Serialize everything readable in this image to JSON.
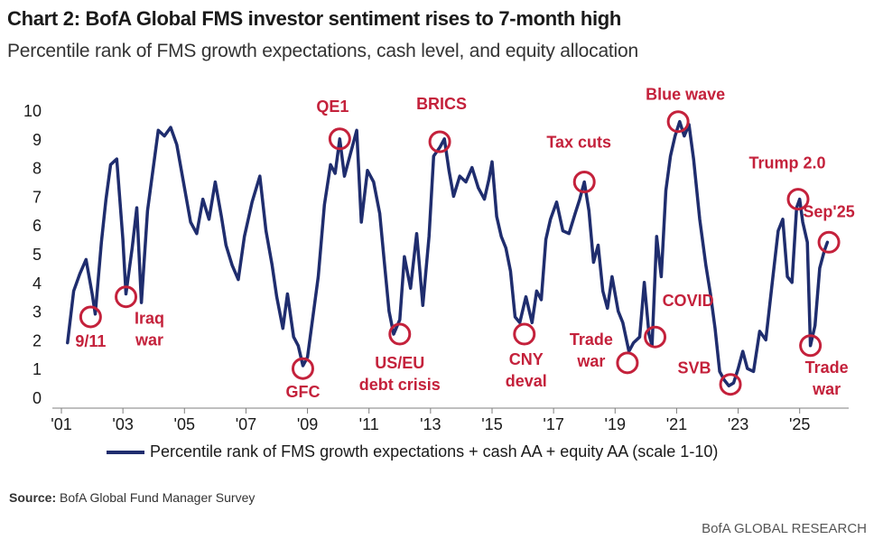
{
  "header": {
    "title": "Chart 2: BofA Global FMS investor sentiment rises to 7-month high",
    "subtitle": "Percentile rank of FMS growth expectations, cash level, and equity allocation"
  },
  "footer": {
    "source_label": "Source:",
    "source_text": "BofA Global Fund Manager Survey",
    "brand": "BofA GLOBAL RESEARCH"
  },
  "colors": {
    "line": "#1f2d6e",
    "annotation": "#c4213b",
    "text": "#1a1a1a"
  },
  "chart_data": {
    "type": "line",
    "title": "Chart 2: BofA Global FMS investor sentiment rises to 7-month high",
    "subtitle": "Percentile rank of FMS growth expectations, cash level, and equity allocation",
    "xlabel": "",
    "ylabel": "",
    "xlim": [
      2001,
      2026.3
    ],
    "ylim": [
      0,
      10
    ],
    "y_ticks": [
      0,
      1,
      2,
      3,
      4,
      5,
      6,
      7,
      8,
      9,
      10
    ],
    "x_ticks": [
      {
        "value": 2001,
        "label": "'01"
      },
      {
        "value": 2003,
        "label": "'03"
      },
      {
        "value": 2005,
        "label": "'05"
      },
      {
        "value": 2007,
        "label": "'07"
      },
      {
        "value": 2009,
        "label": "'09"
      },
      {
        "value": 2011,
        "label": "'11"
      },
      {
        "value": 2013,
        "label": "'13"
      },
      {
        "value": 2015,
        "label": "'15"
      },
      {
        "value": 2017,
        "label": "'17"
      },
      {
        "value": 2019,
        "label": "'19"
      },
      {
        "value": 2021,
        "label": "'21"
      },
      {
        "value": 2023,
        "label": "'23"
      },
      {
        "value": 2025,
        "label": "'25"
      }
    ],
    "grid": false,
    "legend": "bottom",
    "series": [
      {
        "name": "Percentile rank of FMS growth expectations + cash AA + equity AA (scale 1-10)",
        "points": [
          [
            2001.2,
            1.9
          ],
          [
            2001.4,
            3.7
          ],
          [
            2001.6,
            4.3
          ],
          [
            2001.8,
            4.8
          ],
          [
            2002.0,
            3.6
          ],
          [
            2002.1,
            2.9
          ],
          [
            2002.3,
            5.4
          ],
          [
            2002.45,
            6.9
          ],
          [
            2002.6,
            8.1
          ],
          [
            2002.8,
            8.3
          ],
          [
            2003.0,
            5.5
          ],
          [
            2003.1,
            3.6
          ],
          [
            2003.3,
            5.2
          ],
          [
            2003.45,
            6.6
          ],
          [
            2003.6,
            3.3
          ],
          [
            2003.8,
            6.5
          ],
          [
            2004.0,
            8.1
          ],
          [
            2004.15,
            9.3
          ],
          [
            2004.35,
            9.1
          ],
          [
            2004.55,
            9.4
          ],
          [
            2004.75,
            8.8
          ],
          [
            2004.95,
            7.6
          ],
          [
            2005.2,
            6.1
          ],
          [
            2005.4,
            5.7
          ],
          [
            2005.6,
            6.9
          ],
          [
            2005.8,
            6.2
          ],
          [
            2006.0,
            7.5
          ],
          [
            2006.2,
            6.3
          ],
          [
            2006.35,
            5.3
          ],
          [
            2006.55,
            4.6
          ],
          [
            2006.75,
            4.1
          ],
          [
            2006.95,
            5.6
          ],
          [
            2007.2,
            6.8
          ],
          [
            2007.45,
            7.7
          ],
          [
            2007.65,
            5.8
          ],
          [
            2007.85,
            4.6
          ],
          [
            2008.0,
            3.5
          ],
          [
            2008.2,
            2.4
          ],
          [
            2008.35,
            3.6
          ],
          [
            2008.55,
            2.1
          ],
          [
            2008.7,
            1.8
          ],
          [
            2008.85,
            1.1
          ],
          [
            2009.0,
            1.4
          ],
          [
            2009.15,
            2.6
          ],
          [
            2009.35,
            4.2
          ],
          [
            2009.55,
            6.7
          ],
          [
            2009.75,
            8.1
          ],
          [
            2009.9,
            7.8
          ],
          [
            2010.05,
            9.0
          ],
          [
            2010.2,
            7.7
          ],
          [
            2010.4,
            8.5
          ],
          [
            2010.6,
            9.3
          ],
          [
            2010.75,
            6.1
          ],
          [
            2010.95,
            7.9
          ],
          [
            2011.15,
            7.5
          ],
          [
            2011.35,
            6.4
          ],
          [
            2011.5,
            4.7
          ],
          [
            2011.65,
            3.0
          ],
          [
            2011.8,
            2.2
          ],
          [
            2012.0,
            2.7
          ],
          [
            2012.15,
            4.9
          ],
          [
            2012.35,
            3.8
          ],
          [
            2012.55,
            5.7
          ],
          [
            2012.75,
            3.2
          ],
          [
            2012.95,
            5.6
          ],
          [
            2013.1,
            8.4
          ],
          [
            2013.3,
            8.7
          ],
          [
            2013.45,
            9.0
          ],
          [
            2013.6,
            7.9
          ],
          [
            2013.75,
            7.0
          ],
          [
            2013.95,
            7.7
          ],
          [
            2014.15,
            7.5
          ],
          [
            2014.35,
            8.0
          ],
          [
            2014.55,
            7.3
          ],
          [
            2014.75,
            6.9
          ],
          [
            2014.9,
            7.6
          ],
          [
            2015.0,
            8.2
          ],
          [
            2015.15,
            6.3
          ],
          [
            2015.3,
            5.6
          ],
          [
            2015.45,
            5.2
          ],
          [
            2015.6,
            4.4
          ],
          [
            2015.75,
            2.8
          ],
          [
            2015.9,
            2.6
          ],
          [
            2016.1,
            3.5
          ],
          [
            2016.3,
            2.6
          ],
          [
            2016.45,
            3.7
          ],
          [
            2016.6,
            3.4
          ],
          [
            2016.75,
            5.5
          ],
          [
            2016.9,
            6.2
          ],
          [
            2017.1,
            6.8
          ],
          [
            2017.3,
            5.8
          ],
          [
            2017.5,
            5.7
          ],
          [
            2017.7,
            6.4
          ],
          [
            2017.85,
            6.9
          ],
          [
            2018.0,
            7.5
          ],
          [
            2018.15,
            6.5
          ],
          [
            2018.3,
            4.7
          ],
          [
            2018.45,
            5.3
          ],
          [
            2018.6,
            3.7
          ],
          [
            2018.75,
            3.1
          ],
          [
            2018.9,
            4.2
          ],
          [
            2019.1,
            3.0
          ],
          [
            2019.25,
            2.6
          ],
          [
            2019.45,
            1.6
          ],
          [
            2019.6,
            1.9
          ],
          [
            2019.8,
            2.1
          ],
          [
            2019.95,
            4.0
          ],
          [
            2020.1,
            2.2
          ],
          [
            2020.2,
            1.8
          ],
          [
            2020.35,
            5.6
          ],
          [
            2020.5,
            4.2
          ],
          [
            2020.65,
            7.2
          ],
          [
            2020.8,
            8.4
          ],
          [
            2020.95,
            9.1
          ],
          [
            2021.1,
            9.6
          ],
          [
            2021.25,
            9.1
          ],
          [
            2021.4,
            9.5
          ],
          [
            2021.55,
            8.3
          ],
          [
            2021.75,
            6.2
          ],
          [
            2021.95,
            4.6
          ],
          [
            2022.1,
            3.6
          ],
          [
            2022.25,
            2.4
          ],
          [
            2022.4,
            0.9
          ],
          [
            2022.55,
            0.6
          ],
          [
            2022.7,
            0.4
          ],
          [
            2022.85,
            0.5
          ],
          [
            2023.0,
            1.0
          ],
          [
            2023.15,
            1.6
          ],
          [
            2023.3,
            1.0
          ],
          [
            2023.5,
            0.9
          ],
          [
            2023.7,
            2.3
          ],
          [
            2023.9,
            2.0
          ],
          [
            2024.1,
            3.9
          ],
          [
            2024.3,
            5.8
          ],
          [
            2024.45,
            6.2
          ],
          [
            2024.6,
            4.2
          ],
          [
            2024.75,
            4.0
          ],
          [
            2024.9,
            6.6
          ],
          [
            2025.0,
            6.9
          ],
          [
            2025.1,
            6.1
          ],
          [
            2025.25,
            5.4
          ],
          [
            2025.35,
            1.8
          ],
          [
            2025.5,
            2.5
          ],
          [
            2025.65,
            4.5
          ],
          [
            2025.8,
            5.1
          ],
          [
            2025.9,
            5.4
          ]
        ]
      }
    ],
    "annotations": [
      {
        "label": "9/11",
        "x": 2001.95,
        "y": 2.8
      },
      {
        "label": "Iraq\nwar",
        "x": 2003.1,
        "y": 3.5
      },
      {
        "label": "GFC",
        "x": 2008.85,
        "y": 1.0
      },
      {
        "label": "QE1",
        "x": 2010.05,
        "y": 9.0
      },
      {
        "label": "US/EU\ndebt crisis",
        "x": 2012.0,
        "y": 2.2
      },
      {
        "label": "BRICS",
        "x": 2013.3,
        "y": 8.9
      },
      {
        "label": "CNY\ndeval",
        "x": 2016.05,
        "y": 2.2
      },
      {
        "label": "Tax cuts",
        "x": 2018.0,
        "y": 7.5
      },
      {
        "label": "Trade\nwar",
        "x": 2019.4,
        "y": 1.2
      },
      {
        "label": "COVID",
        "x": 2020.3,
        "y": 2.1
      },
      {
        "label": "Blue wave",
        "x": 2021.05,
        "y": 9.6
      },
      {
        "label": "SVB",
        "x": 2022.75,
        "y": 0.45
      },
      {
        "label": "Trump 2.0",
        "x": 2024.95,
        "y": 6.9
      },
      {
        "label": "Trade\nwar",
        "x": 2025.35,
        "y": 1.8
      },
      {
        "label": "Sep'25",
        "x": 2025.95,
        "y": 5.4
      }
    ]
  }
}
